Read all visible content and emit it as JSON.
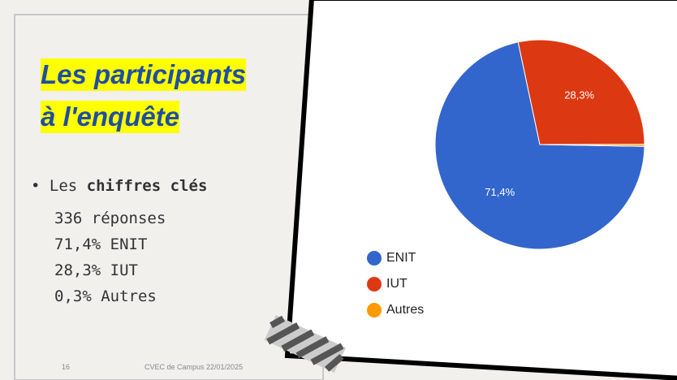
{
  "slide": {
    "title_lines": [
      "Les participants ",
      "à l'enquête"
    ],
    "bullet_prefix": "Les",
    "bullet_bold": "chiffres clés",
    "lines": [
      "336 réponses",
      "71,4% ENIT",
      "28,3% IUT",
      "0,3% Autres"
    ],
    "page_number": "16",
    "footer": "CVEC de Campus 22/01/2025"
  },
  "chart_data": {
    "type": "pie",
    "categories": [
      "ENIT",
      "IUT",
      "Autres"
    ],
    "values": [
      71.4,
      28.3,
      0.3
    ],
    "value_labels": [
      "71,4%",
      "28,3%",
      null
    ],
    "colors": [
      "#3366cc",
      "#dc3912",
      "#ff9900"
    ],
    "legend": "bottom-left"
  }
}
